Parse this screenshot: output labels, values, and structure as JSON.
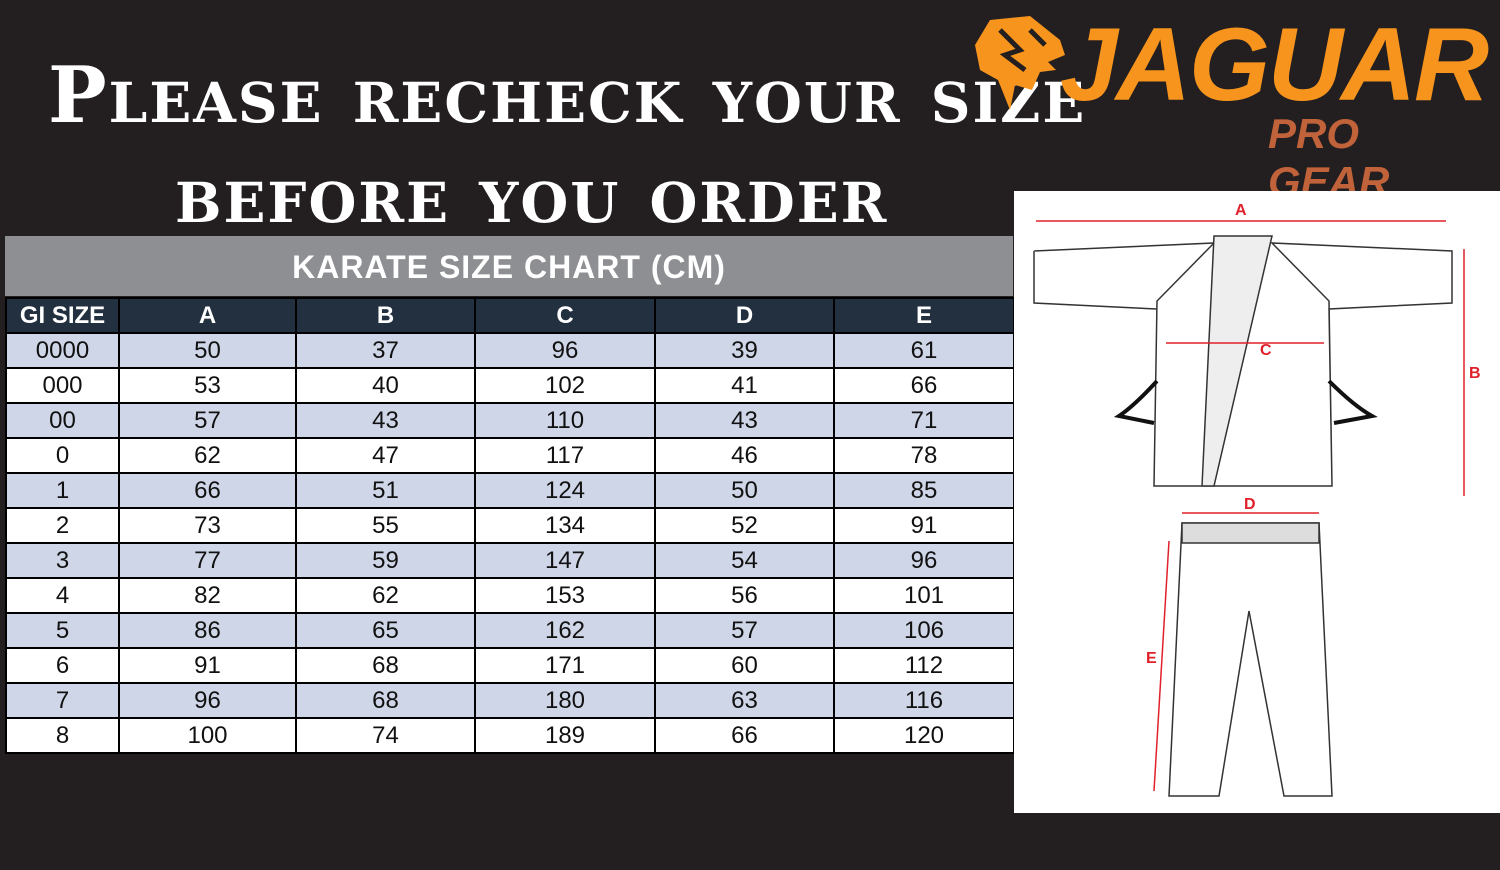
{
  "heading": {
    "line1": "Please recheck your size",
    "line2": "before you order"
  },
  "logo": {
    "brand": "JAGUAR",
    "tagline": "PRO GEAR",
    "colors": {
      "brand": "#f7941d",
      "tagline": "#c0623a"
    }
  },
  "chart_title": "KARATE SIZE CHART (CM)",
  "table": {
    "headers": [
      "GI SIZE",
      "A",
      "B",
      "C",
      "D",
      "E"
    ],
    "rows": [
      [
        "0000",
        "50",
        "37",
        "96",
        "39",
        "61"
      ],
      [
        "000",
        "53",
        "40",
        "102",
        "41",
        "66"
      ],
      [
        "00",
        "57",
        "43",
        "110",
        "43",
        "71"
      ],
      [
        "0",
        "62",
        "47",
        "117",
        "46",
        "78"
      ],
      [
        "1",
        "66",
        "51",
        "124",
        "50",
        "85"
      ],
      [
        "2",
        "73",
        "55",
        "134",
        "52",
        "91"
      ],
      [
        "3",
        "77",
        "59",
        "147",
        "54",
        "96"
      ],
      [
        "4",
        "82",
        "62",
        "153",
        "56",
        "101"
      ],
      [
        "5",
        "86",
        "65",
        "162",
        "57",
        "106"
      ],
      [
        "6",
        "91",
        "68",
        "171",
        "60",
        "112"
      ],
      [
        "7",
        "96",
        "68",
        "180",
        "63",
        "116"
      ],
      [
        "8",
        "100",
        "74",
        "189",
        "66",
        "120"
      ]
    ]
  },
  "diagram": {
    "labels": {
      "a": "A",
      "b": "B",
      "c": "C",
      "d": "D",
      "e": "E"
    },
    "label_color": "#e0202a"
  }
}
